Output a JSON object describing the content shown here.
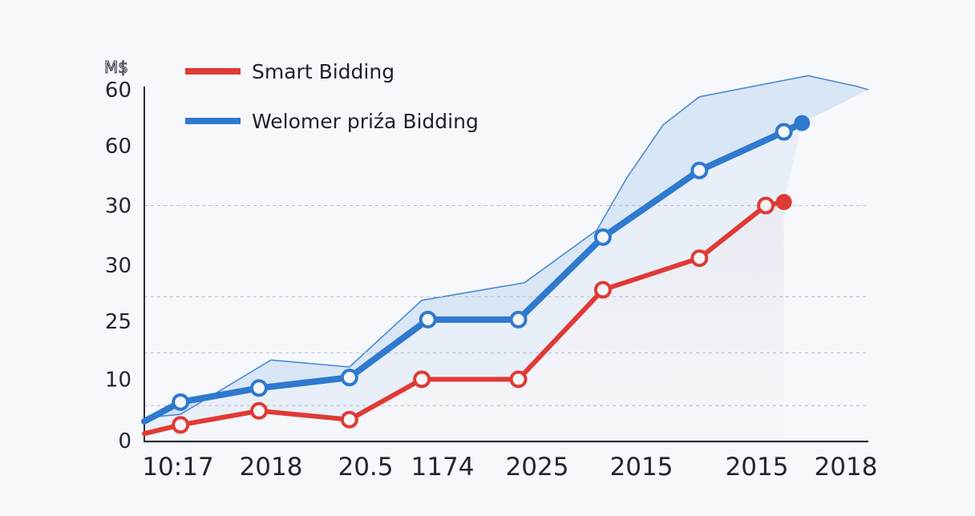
{
  "chart_data": {
    "type": "line",
    "unit_label": "M$",
    "y_tick_labels": [
      "0",
      "10",
      "25",
      "30",
      "30",
      "60",
      "60"
    ],
    "x_tick_labels": [
      "10:17",
      "2018",
      "20.5",
      "1174",
      "2025",
      "2015",
      "2015",
      "2018"
    ],
    "grid": "dashed-horizontal",
    "legend_position": "top-left",
    "series": [
      {
        "name": "Smart Bidding",
        "color": "#e03a35",
        "x": [
          0,
          0.6,
          1.9,
          3.4,
          4.6,
          6.2,
          7.6,
          9.2,
          10.3,
          10.6
        ],
        "y": [
          0.2,
          0.45,
          0.85,
          0.6,
          1.75,
          1.75,
          4.3,
          5.2,
          6.7,
          6.8
        ]
      },
      {
        "name": "Welomer priźa Bidding",
        "color": "#2f79cf",
        "x": [
          0,
          0.6,
          1.9,
          3.4,
          4.7,
          6.2,
          7.6,
          9.2,
          10.6,
          10.9
        ],
        "y": [
          0.55,
          1.1,
          1.5,
          1.8,
          3.45,
          3.45,
          5.8,
          7.7,
          8.8,
          9.05
        ]
      }
    ],
    "band": {
      "color": "#cfe0f4",
      "upper": {
        "x": [
          0,
          0.6,
          2.1,
          3.4,
          4.6,
          6.3,
          7.5,
          8.0,
          8.6,
          9.2,
          11.0,
          11.8,
          12.0
        ],
        "y": [
          0.65,
          0.75,
          2.3,
          2.1,
          4.0,
          4.5,
          6.0,
          7.5,
          9.0,
          9.8,
          10.4,
          10.1,
          10.0
        ]
      },
      "lower": {
        "x": [
          0,
          0.6,
          1.9,
          3.4,
          4.7,
          6.2,
          7.6,
          9.2,
          10.6,
          10.9
        ],
        "y": [
          0.55,
          1.1,
          1.5,
          1.8,
          3.45,
          3.45,
          5.8,
          7.7,
          8.8,
          9.05
        ]
      }
    }
  }
}
